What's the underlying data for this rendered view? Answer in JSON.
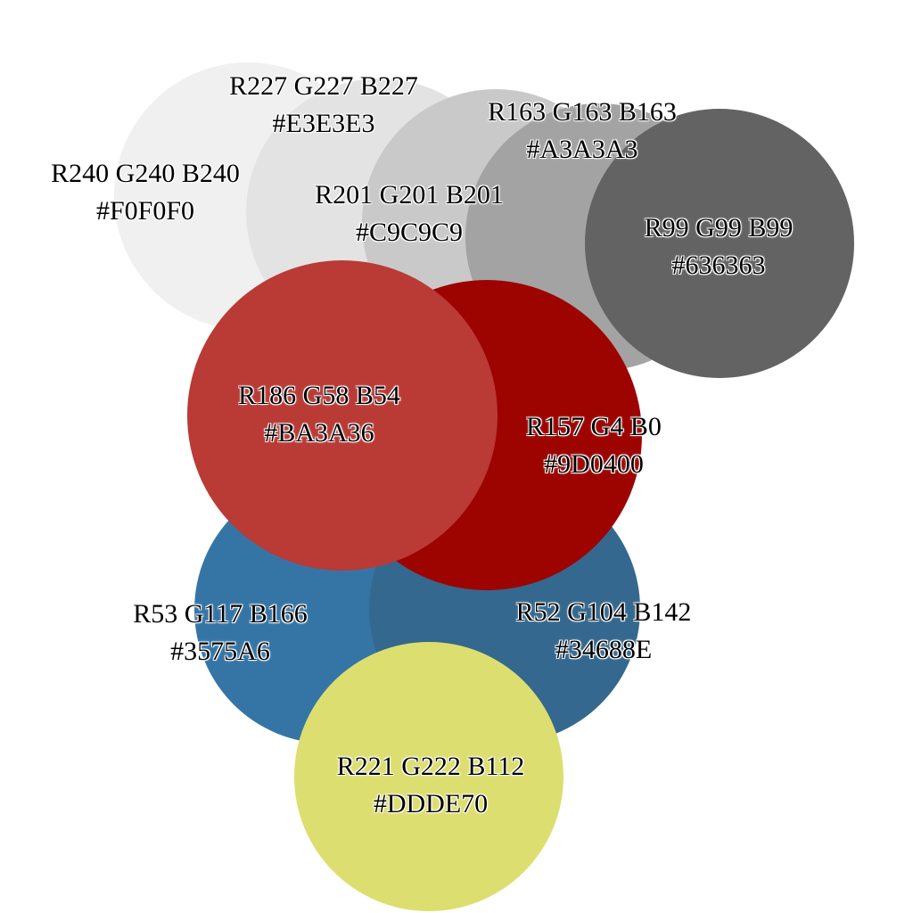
{
  "swatches": [
    {
      "id": "f0",
      "rgb": "R240 G240 B240",
      "hex": "#F0F0F0",
      "color": "#F0F0F0"
    },
    {
      "id": "e3",
      "rgb": "R227 G227 B227",
      "hex": "#E3E3E3",
      "color": "#E3E3E3"
    },
    {
      "id": "c9",
      "rgb": "R201 G201 B201",
      "hex": "#C9C9C9",
      "color": "#C9C9C9"
    },
    {
      "id": "a3",
      "rgb": "R163 G163 B163",
      "hex": "#A3A3A3",
      "color": "#A3A3A3"
    },
    {
      "id": "63",
      "rgb": "R99 G99 B99",
      "hex": "#636363",
      "color": "#636363"
    },
    {
      "id": "3575",
      "rgb": "R53 G117 B166",
      "hex": "#3575A6",
      "color": "#3575A6"
    },
    {
      "id": "3468",
      "rgb": "R52 G104 B142",
      "hex": "#34688E",
      "color": "#34688E"
    },
    {
      "id": "9d",
      "rgb": "R157 G4 B0",
      "hex": "#9D0400",
      "color": "#9D0400"
    },
    {
      "id": "ba",
      "rgb": "R186 G58 B54",
      "hex": "#BA3A36",
      "color": "#BA3A36"
    },
    {
      "id": "dd",
      "rgb": "R221 G222 B112",
      "hex": "#DDDE70",
      "color": "#DDDE70"
    }
  ]
}
